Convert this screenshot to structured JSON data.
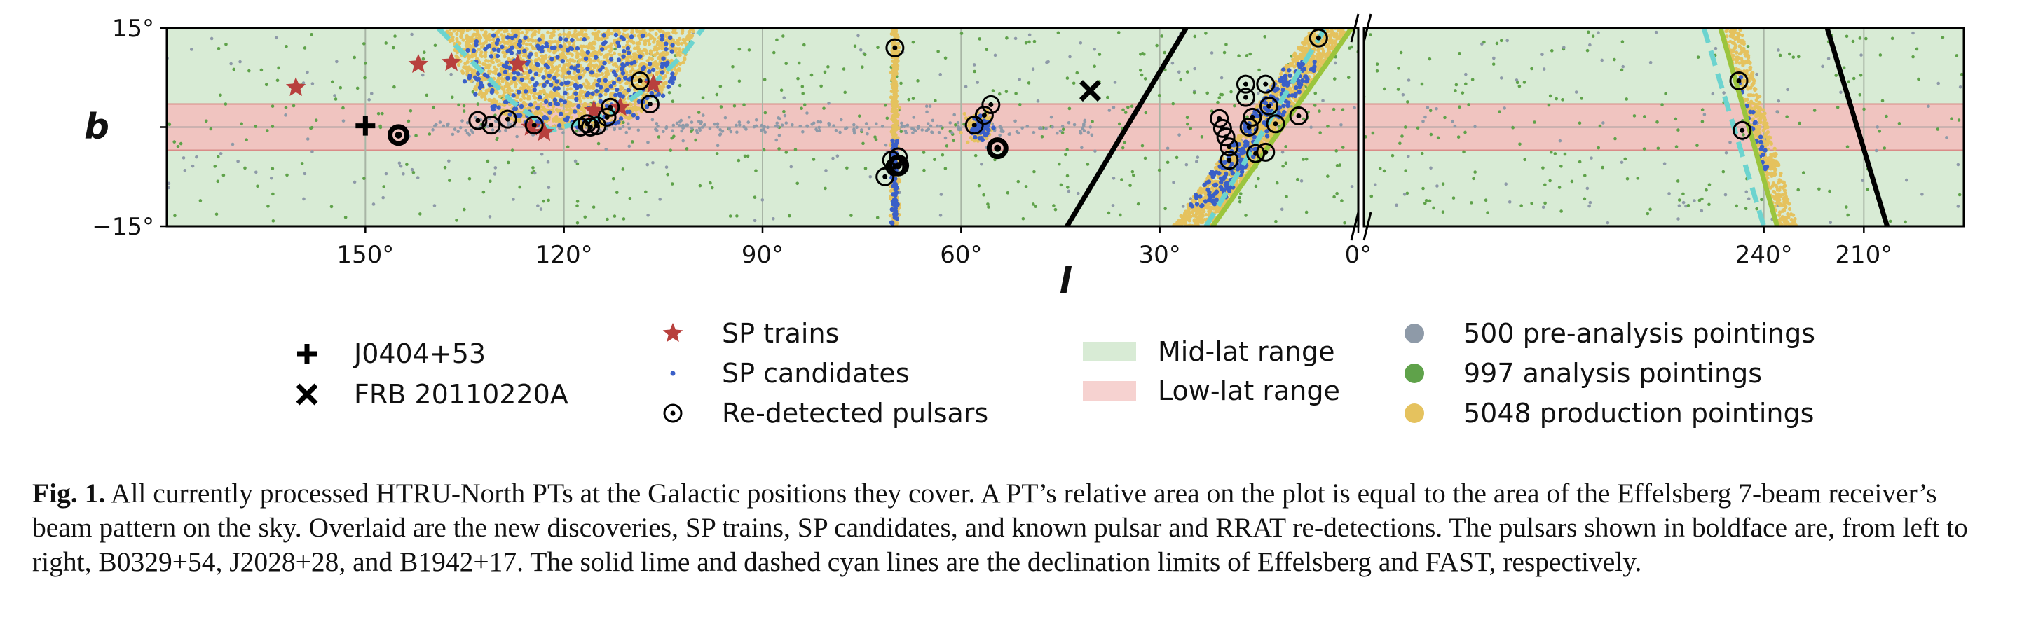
{
  "chart_data": {
    "type": "scatter",
    "title": "",
    "xlabel": "l",
    "ylabel": "b",
    "panels": [
      {
        "name": "left",
        "xlim": [
          180,
          0
        ],
        "ticks": [
          150,
          120,
          90,
          60,
          30,
          0
        ],
        "tick_labels": [
          "150°",
          "120°",
          "90°",
          "60°",
          "30°",
          "0°"
        ]
      },
      {
        "name": "right",
        "xlim": [
          360,
          180
        ],
        "ticks": [
          240,
          210
        ],
        "tick_labels": [
          "240°",
          "210°"
        ]
      }
    ],
    "ylim": [
      -15,
      15
    ],
    "yticks": [
      15,
      0,
      -15
    ],
    "ytick_labels": [
      "15°",
      "",
      "−15°"
    ],
    "shaded_ranges": [
      {
        "name": "Mid-lat range",
        "b_range": [
          -15,
          15
        ],
        "color": "#d8ebd5"
      },
      {
        "name": "Low-lat range",
        "b_range": [
          -3.5,
          3.5
        ],
        "color": "#f0c4c0"
      }
    ],
    "special_markers": [
      {
        "name": "J0404+53",
        "marker": "plus",
        "l": 150,
        "b": 0.2
      },
      {
        "name": "FRB 20110220A",
        "marker": "x",
        "l": 40.5,
        "b": 5.5
      }
    ],
    "sp_trains": [
      {
        "l": 160.5,
        "b": 6
      },
      {
        "l": 142,
        "b": 9.5
      },
      {
        "l": 137,
        "b": 9.8
      },
      {
        "l": 127,
        "b": 9.5
      },
      {
        "l": 115.5,
        "b": 2.5
      },
      {
        "l": 111.5,
        "b": 3
      },
      {
        "l": 106.5,
        "b": 6.5
      },
      {
        "l": 125,
        "b": 0
      },
      {
        "l": 123,
        "b": -0.8
      }
    ],
    "redetected_pulsars": [
      {
        "l": 133,
        "b": 1
      },
      {
        "l": 131,
        "b": 0.3
      },
      {
        "l": 128.5,
        "b": 1.2
      },
      {
        "l": 124.5,
        "b": 0.3
      },
      {
        "l": 117.5,
        "b": 0
      },
      {
        "l": 116.5,
        "b": 0.5
      },
      {
        "l": 116,
        "b": 0
      },
      {
        "l": 115,
        "b": 0.2
      },
      {
        "l": 113.5,
        "b": 1.5
      },
      {
        "l": 113,
        "b": 3
      },
      {
        "l": 108.5,
        "b": 7
      },
      {
        "l": 107,
        "b": 3.5
      },
      {
        "l": 70,
        "b": 12
      },
      {
        "l": 70.5,
        "b": -5
      },
      {
        "l": 70,
        "b": -6
      },
      {
        "l": 71.5,
        "b": -7.5
      },
      {
        "l": 69.5,
        "b": -4.5
      },
      {
        "l": 58,
        "b": 0.3
      },
      {
        "l": 56.5,
        "b": 1.8
      },
      {
        "l": 55.5,
        "b": 3.4
      },
      {
        "l": 21,
        "b": 1.3
      },
      {
        "l": 20.5,
        "b": -0.2
      },
      {
        "l": 20,
        "b": -1.5
      },
      {
        "l": 19.5,
        "b": -3
      },
      {
        "l": 19.5,
        "b": -5
      },
      {
        "l": 17,
        "b": 6.5
      },
      {
        "l": 17,
        "b": 4.5
      },
      {
        "l": 16.5,
        "b": 0
      },
      {
        "l": 16,
        "b": 1.5
      },
      {
        "l": 15.5,
        "b": -4
      },
      {
        "l": 14,
        "b": -3.8
      },
      {
        "l": 14,
        "b": 6.5
      },
      {
        "l": 13.5,
        "b": 3.2
      },
      {
        "l": 12.5,
        "b": 0.5
      },
      {
        "l": 9,
        "b": 1.7
      },
      {
        "l": 6,
        "b": 13.5
      },
      {
        "l": 247.5,
        "b": 7
      },
      {
        "l": 246.5,
        "b": -0.5
      }
    ],
    "boldface_pulsars": [
      {
        "name": "B0329+54",
        "l": 145,
        "b": -1.2
      },
      {
        "name": "J2028+28",
        "l": 69.5,
        "b": -5.8
      },
      {
        "name": "B1942+17",
        "l": 54.5,
        "b": -3.2
      }
    ],
    "declination_limits": [
      {
        "name": "Effelsberg",
        "style": "solid",
        "color": "#9bc53d",
        "segments": [
          [
            [
              22,
              -15
            ],
            [
              1,
              15
            ]
          ],
          [
            [
              253,
              15
            ],
            [
              236,
              -15
            ]
          ]
        ]
      },
      {
        "name": "FAST",
        "style": "dashed",
        "color": "#6cd4cf",
        "segments": [
          [
            [
              139,
              15
            ],
            [
              134,
              10
            ],
            [
              128,
              4
            ],
            [
              122,
              -0.5
            ],
            [
              113,
              2
            ],
            [
              106,
              7
            ],
            [
              102,
              11
            ],
            [
              99,
              15
            ]
          ],
          [
            [
              23,
              -15
            ],
            [
              5,
              15
            ]
          ],
          [
            [
              258,
              15
            ],
            [
              240,
              -15
            ]
          ]
        ]
      }
    ],
    "black_lines": [
      [
        [
          44,
          -15
        ],
        [
          26,
          15
        ]
      ],
      [
        [
          221,
          15
        ],
        [
          203,
          -15
        ]
      ]
    ],
    "legend": {
      "col1": [
        {
          "marker": "plus",
          "label": "J0404+53"
        },
        {
          "marker": "x",
          "label": "FRB 20110220A"
        }
      ],
      "col2": [
        {
          "marker": "star",
          "color": "#b8403d",
          "label": "SP trains"
        },
        {
          "marker": "dot",
          "color": "#3a5fc8",
          "label": "SP candidates"
        },
        {
          "marker": "circle-dot",
          "label": "Re-detected pulsars"
        }
      ],
      "col3": [
        {
          "marker": "patch",
          "color": "#d8ebd5",
          "label": "Mid-lat range"
        },
        {
          "marker": "patch",
          "color": "#f6d2d0",
          "label": "Low-lat range"
        }
      ],
      "col4": [
        {
          "marker": "disc",
          "color": "#8e9aa8",
          "label": "500 pre-analysis pointings"
        },
        {
          "marker": "disc",
          "color": "#5fa24a",
          "label": "997 analysis pointings"
        },
        {
          "marker": "disc",
          "color": "#e5c25e",
          "label": "5048 production pointings"
        }
      ]
    },
    "pointing_colors": {
      "pre_analysis": "#8e9aa8",
      "analysis": "#5fa24a",
      "production": "#e5c25e",
      "sp_candidate": "#3a5fc8"
    }
  },
  "caption": {
    "label": "Fig. 1.",
    "text": " All currently processed HTRU-North PTs at the Galactic positions they cover. A PT’s relative area on the plot is equal to the area of the Effelsberg 7-beam receiver’s beam pattern on the sky. Overlaid are the new discoveries, SP trains, SP candidates, and known pulsar and RRAT re-detections. The pulsars shown in boldface are, from left to right, B0329+54, J2028+28, and B1942+17. The solid lime and dashed cyan lines are the declination limits of Effelsberg and FAST, respectively."
  }
}
